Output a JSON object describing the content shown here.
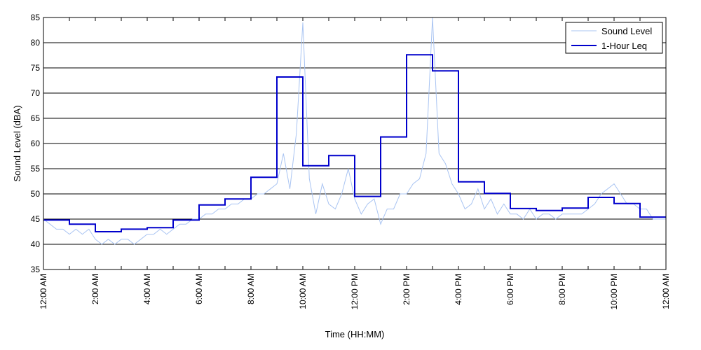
{
  "chart_data": {
    "type": "line",
    "title": "",
    "xlabel": "Time (HH:MM)",
    "ylabel": "Sound Level (dBA)",
    "ylim": [
      35,
      85
    ],
    "xlim_hours": [
      0,
      24
    ],
    "y_ticks": [
      35,
      40,
      45,
      50,
      55,
      60,
      65,
      70,
      75,
      80,
      85
    ],
    "x_ticks": [
      {
        "hour": 0,
        "label": "12:00 AM"
      },
      {
        "hour": 2,
        "label": "2:00 AM"
      },
      {
        "hour": 4,
        "label": "4:00 AM"
      },
      {
        "hour": 6,
        "label": "6:00 AM"
      },
      {
        "hour": 8,
        "label": "8:00 AM"
      },
      {
        "hour": 10,
        "label": "10:00 AM"
      },
      {
        "hour": 12,
        "label": "12:00 PM"
      },
      {
        "hour": 14,
        "label": "2:00 PM"
      },
      {
        "hour": 16,
        "label": "4:00 PM"
      },
      {
        "hour": 18,
        "label": "6:00 PM"
      },
      {
        "hour": 20,
        "label": "8:00 PM"
      },
      {
        "hour": 22,
        "label": "10:00 PM"
      },
      {
        "hour": 24,
        "label": "12:00 AM"
      }
    ],
    "minor_x_ticks_hours": [
      1,
      3,
      5,
      7,
      9,
      11,
      13,
      15,
      17,
      19,
      21,
      23
    ],
    "grid": "horizontal",
    "legend_position": "top-right",
    "series": [
      {
        "name": "Sound Level",
        "color": "#a9c4f2",
        "hours": [
          0.0,
          0.25,
          0.5,
          0.75,
          1.0,
          1.25,
          1.5,
          1.75,
          2.0,
          2.25,
          2.5,
          2.75,
          3.0,
          3.25,
          3.5,
          3.75,
          4.0,
          4.25,
          4.5,
          4.75,
          5.0,
          5.25,
          5.5,
          5.75,
          6.0,
          6.25,
          6.5,
          6.75,
          7.0,
          7.25,
          7.5,
          7.75,
          8.0,
          8.25,
          8.5,
          8.75,
          9.0,
          9.25,
          9.5,
          9.75,
          10.0,
          10.25,
          10.5,
          10.75,
          11.0,
          11.25,
          11.5,
          11.75,
          12.0,
          12.25,
          12.5,
          12.75,
          13.0,
          13.25,
          13.5,
          13.75,
          14.0,
          14.25,
          14.5,
          14.75,
          15.0,
          15.25,
          15.5,
          15.75,
          16.0,
          16.25,
          16.5,
          16.75,
          17.0,
          17.25,
          17.5,
          17.75,
          18.0,
          18.25,
          18.5,
          18.75,
          19.0,
          19.25,
          19.5,
          19.75,
          20.0,
          20.25,
          20.5,
          20.75,
          21.0,
          21.25,
          21.5,
          21.75,
          22.0,
          22.25,
          22.5,
          22.75,
          23.0,
          23.25,
          23.5,
          23.75,
          24.0
        ],
        "values": [
          45,
          44,
          43,
          43,
          42,
          43,
          42,
          43,
          41,
          40,
          41,
          40,
          41,
          41,
          40,
          41,
          42,
          42,
          43,
          42,
          43,
          44,
          44,
          45,
          45,
          46,
          46,
          47,
          47,
          48,
          48,
          49,
          49,
          50,
          50,
          51,
          52,
          58,
          51,
          62,
          84,
          53,
          46,
          52,
          48,
          47,
          50,
          55,
          49,
          46,
          48,
          49,
          44,
          47,
          47,
          50,
          50,
          52,
          53,
          58,
          85,
          58,
          56,
          52,
          50,
          47,
          48,
          51,
          47,
          49,
          46,
          48,
          46,
          46,
          45,
          47,
          45,
          46,
          46,
          45,
          46,
          46,
          46,
          46,
          47,
          48,
          50,
          51,
          52,
          50,
          48,
          48,
          47,
          47,
          45,
          45,
          45
        ]
      },
      {
        "name": "1-Hour Leq",
        "color": "#0000cc",
        "step": true,
        "hours": [
          0,
          1,
          2,
          3,
          4,
          5,
          6,
          7,
          8,
          9,
          10,
          11,
          12,
          13,
          14,
          15,
          16,
          17,
          18,
          19,
          20,
          21,
          22,
          23
        ],
        "values": [
          44.8,
          44.0,
          42.5,
          43.0,
          43.3,
          44.8,
          47.8,
          49.0,
          53.3,
          73.2,
          55.6,
          57.6,
          49.5,
          61.3,
          77.6,
          74.4,
          52.4,
          50.1,
          47.1,
          46.7,
          47.2,
          49.3,
          48.1,
          45.4
        ]
      }
    ]
  }
}
